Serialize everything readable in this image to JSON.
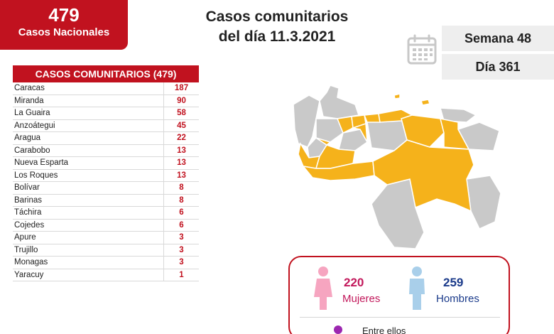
{
  "national": {
    "count": "479",
    "label": "Casos Nacionales"
  },
  "title": {
    "line1": "Casos comunitarios",
    "line2": "del día 11.3.2021"
  },
  "week": "Semana 48",
  "day": "Día 361",
  "table": {
    "header": "CASOS COMUNITARIOS (479)",
    "rows": [
      {
        "name": "Caracas",
        "value": "187"
      },
      {
        "name": "Miranda",
        "value": "90"
      },
      {
        "name": "La Guaira",
        "value": "58"
      },
      {
        "name": "Anzoátegui",
        "value": "45"
      },
      {
        "name": "Aragua",
        "value": "22"
      },
      {
        "name": "Carabobo",
        "value": "13"
      },
      {
        "name": "Nueva Esparta",
        "value": "13"
      },
      {
        "name": "Los Roques",
        "value": "13"
      },
      {
        "name": "Bolívar",
        "value": "8"
      },
      {
        "name": "Barinas",
        "value": "8"
      },
      {
        "name": "Táchira",
        "value": "6"
      },
      {
        "name": "Cojedes",
        "value": "6"
      },
      {
        "name": "Apure",
        "value": "3"
      },
      {
        "name": "Trujillo",
        "value": "3"
      },
      {
        "name": "Monagas",
        "value": "3"
      },
      {
        "name": "Yaracuy",
        "value": "1"
      }
    ]
  },
  "gender": {
    "women_count": "220",
    "women_label": "Mujeres",
    "men_count": "259",
    "men_label": "Hombres",
    "between": "Entre ellos"
  },
  "colors": {
    "brand": "#c1121f",
    "affected": "#f5b21b",
    "unaffected": "#c9c9c9",
    "women": "#f6a5c0",
    "men": "#a9cfea"
  }
}
